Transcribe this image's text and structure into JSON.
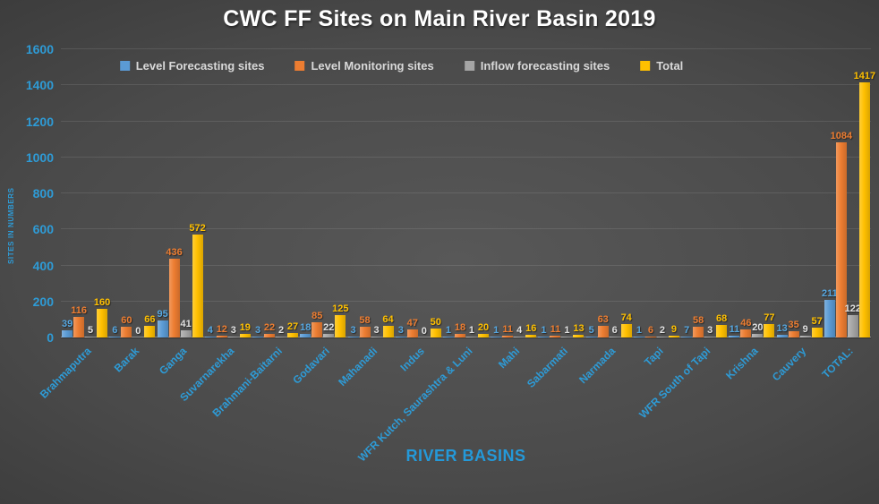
{
  "chart_data": {
    "type": "bar",
    "title": "CWC FF Sites on Main River Basin 2019",
    "xlabel": "RIVER BASINS",
    "ylabel": "SITES IN NUMBERS",
    "ylim": [
      0,
      1600
    ],
    "ytick_step": 200,
    "yticks": [
      0,
      200,
      400,
      600,
      800,
      1000,
      1200,
      1400,
      1600
    ],
    "grid": true,
    "legend_position": "top-center",
    "categories": [
      "Brahmaputra",
      "Barak",
      "Ganga",
      "Suvarnarekha",
      "Brahmani-Baitarni",
      "Godavari",
      "Mahanadi",
      "Indus",
      "WFR Kutch, Saurashtra & Luni",
      "Mahi",
      "Sabarmati",
      "Narmada",
      "Tapi",
      "WFR South of Tapi",
      "Krishna",
      "Cauvery",
      "TOTAL:"
    ],
    "series": [
      {
        "name": "Level Forecasting sites",
        "color": "#5B9BD5",
        "label_color": "#56A7E0",
        "values": [
          39,
          6,
          95,
          4,
          3,
          18,
          3,
          3,
          1,
          1,
          1,
          5,
          1,
          7,
          11,
          13,
          211
        ]
      },
      {
        "name": "Level Monitoring sites",
        "color": "#ED7D31",
        "label_color": "#ED7D31",
        "values": [
          116,
          60,
          436,
          12,
          22,
          85,
          58,
          47,
          18,
          11,
          11,
          63,
          6,
          58,
          46,
          35,
          1084
        ]
      },
      {
        "name": "Inflow forecasting sites",
        "color": "#A5A5A5",
        "label_color": "#E2E2E2",
        "values": [
          5,
          0,
          41,
          3,
          2,
          22,
          3,
          0,
          1,
          4,
          1,
          6,
          2,
          3,
          20,
          9,
          122
        ]
      },
      {
        "name": "Total",
        "color": "#FFC000",
        "label_color": "#FFC000",
        "values": [
          160,
          66,
          572,
          19,
          27,
          125,
          64,
          50,
          20,
          16,
          13,
          74,
          9,
          68,
          77,
          57,
          1417
        ]
      }
    ]
  },
  "colors": {
    "title_text": "#FFFFFF",
    "axis_text": "#2E9BD6",
    "legend_text": "#D9D9D9",
    "background_center": "#585858",
    "background_edge": "#242424"
  }
}
